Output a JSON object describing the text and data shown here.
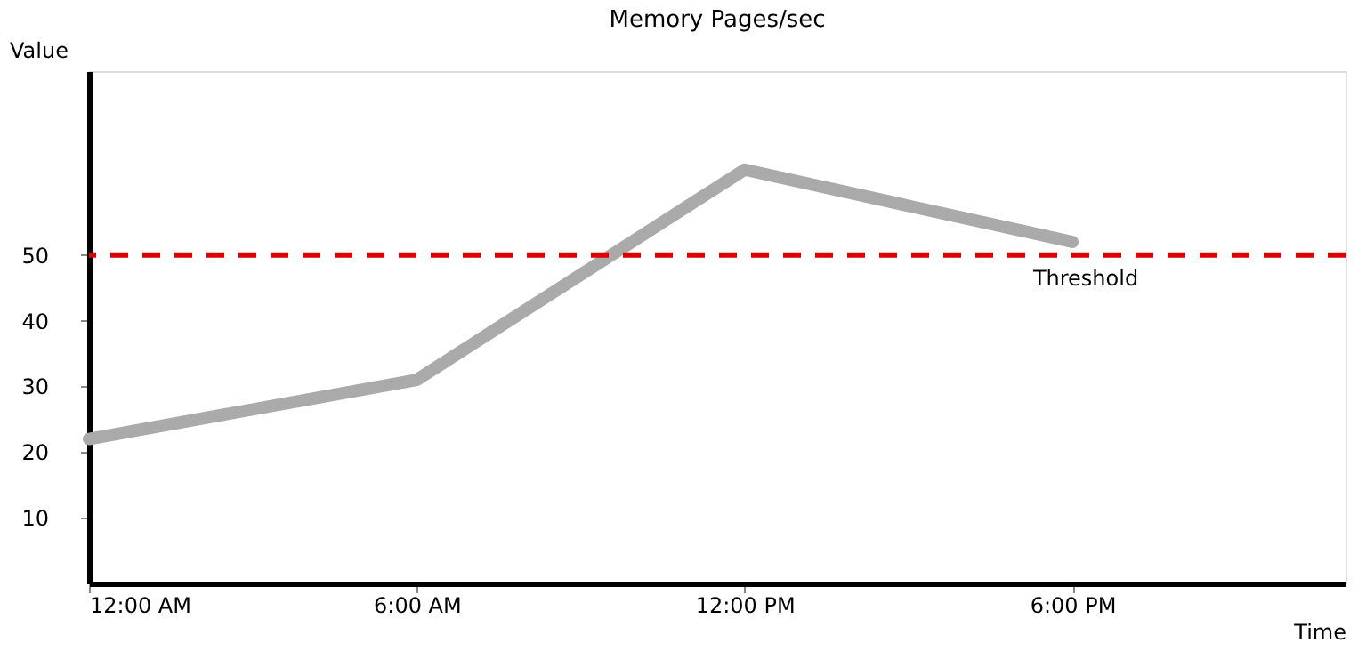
{
  "chart_data": {
    "type": "line",
    "title": "Memory Pages/sec",
    "xlabel": "Time",
    "ylabel": "Value",
    "x": [
      0,
      6,
      12,
      18
    ],
    "series": [
      {
        "color": "#aaaaaa",
        "values": [
          22,
          31,
          63,
          52
        ]
      }
    ],
    "xlim": [
      0,
      23
    ],
    "xticks": [
      {
        "value": 0,
        "label": "12:00 AM"
      },
      {
        "value": 6,
        "label": "6:00 AM"
      },
      {
        "value": 12,
        "label": "12:00 PM"
      },
      {
        "value": 18,
        "label": "6:00 PM"
      }
    ],
    "ylim": [
      0,
      78
    ],
    "yticks": [
      10,
      20,
      30,
      40,
      50
    ],
    "ref_lines": [
      {
        "axis": "y",
        "value": 50,
        "label": "Threshold",
        "color": "#dd0000",
        "line_style": "dashed"
      }
    ],
    "grid": false,
    "line_style": "solid"
  }
}
